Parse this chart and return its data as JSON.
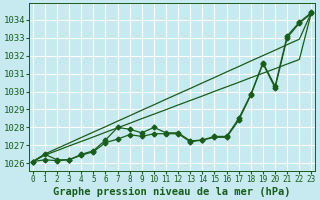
{
  "title": "Graphe pression niveau de la mer (hPa)",
  "title_fontsize": 7.5,
  "ylabel_labels": [
    1026,
    1027,
    1028,
    1029,
    1030,
    1031,
    1032,
    1033,
    1034
  ],
  "xlim": [
    -0.3,
    23.3
  ],
  "ylim": [
    1025.6,
    1034.9
  ],
  "bg_color": "#c6eaf0",
  "grid_color": "#ffffff",
  "line_color": "#1a5c1a",
  "line_smooth1": [
    1026.1,
    1026.5,
    1026.2,
    1026.2,
    1026.5,
    1026.7,
    1027.3,
    1028.0,
    1027.9,
    1027.7,
    1028.0,
    1027.7,
    1027.7,
    1027.25,
    1027.3,
    1027.5,
    1027.5,
    1028.5,
    1029.85,
    1031.6,
    1030.3,
    1033.1,
    1033.85,
    1034.4
  ],
  "line_smooth2": [
    1026.1,
    1026.2,
    1026.15,
    1026.2,
    1026.45,
    1026.65,
    1027.15,
    1027.35,
    1027.6,
    1027.5,
    1027.65,
    1027.65,
    1027.65,
    1027.2,
    1027.3,
    1027.45,
    1027.45,
    1028.4,
    1029.8,
    1031.55,
    1030.2,
    1033.0,
    1033.8,
    1034.35
  ],
  "line_diag1": [
    1026.1,
    1026.46,
    1026.71,
    1026.97,
    1027.22,
    1027.47,
    1027.73,
    1027.98,
    1028.23,
    1028.49,
    1028.74,
    1028.99,
    1029.25,
    1029.5,
    1029.75,
    1030.01,
    1030.26,
    1030.51,
    1030.77,
    1031.02,
    1031.27,
    1031.53,
    1031.78,
    1034.4
  ],
  "line_diag2": [
    1026.1,
    1026.52,
    1026.83,
    1027.13,
    1027.44,
    1027.74,
    1028.04,
    1028.35,
    1028.65,
    1028.96,
    1029.26,
    1029.57,
    1029.87,
    1030.17,
    1030.48,
    1030.78,
    1031.09,
    1031.39,
    1031.7,
    1032.0,
    1032.3,
    1032.61,
    1032.91,
    1034.4
  ],
  "marker": "D",
  "marker_size": 2.5,
  "lw": 0.9,
  "figsize": [
    3.2,
    2.0
  ],
  "dpi": 100
}
